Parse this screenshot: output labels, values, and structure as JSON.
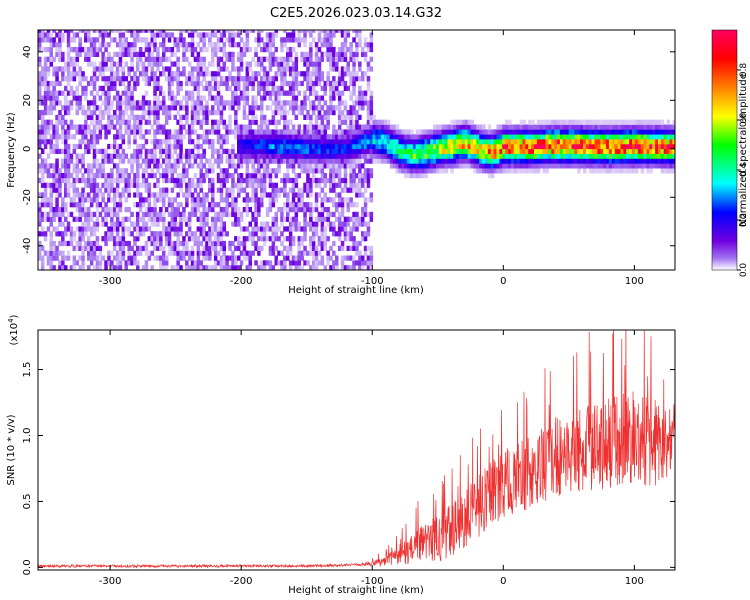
{
  "title": "C2E5.2026.023.03.14.G32",
  "chart_data": [
    {
      "type": "heatmap",
      "title": "C2E5.2026.023.03.14.G32",
      "xlabel": "Height of straight line (km)",
      "ylabel": "Frequency (Hz)",
      "xlim": [
        -355,
        131
      ],
      "ylim": [
        -50,
        49
      ],
      "x_ticks": [
        -300,
        -200,
        -100,
        0,
        100
      ],
      "x_tick_labels": [
        "-300",
        "-200",
        "-100",
        "0",
        "100"
      ],
      "y_ticks": [
        -40,
        -20,
        0,
        20,
        40
      ],
      "y_tick_labels": [
        "-40",
        "-20",
        "0",
        "20",
        "40"
      ],
      "colorbar": {
        "label": "Normalized spectral amplitude",
        "range": [
          0,
          0.96
        ],
        "ticks": [
          0.0,
          0.2,
          0.4,
          0.6,
          0.8
        ],
        "tick_labels": [
          "0.0",
          "0.2",
          "0.4",
          "0.6",
          "0.8"
        ],
        "colors": [
          "#ffffff",
          "#a070f0",
          "#7000e0",
          "#0000ff",
          "#00ffff",
          "#00ff00",
          "#ffff00",
          "#ff8000",
          "#ff0000",
          "#ff0060"
        ]
      },
      "noise_region_x": [
        -355,
        -100
      ],
      "signal_track": {
        "x": [
          -200,
          -180,
          -160,
          -140,
          -120,
          -100,
          -90,
          -80,
          -70,
          -60,
          -50,
          -40,
          -30,
          -20,
          -10,
          0,
          20,
          40,
          60,
          80,
          100,
          131
        ],
        "freq": [
          1.5,
          1.2,
          0.8,
          -0.4,
          0.4,
          4.0,
          2.5,
          -0.8,
          -2.5,
          -1.5,
          0.2,
          1.0,
          2.5,
          0.0,
          -1.5,
          0.8,
          0.8,
          1.5,
          1.2,
          0.8,
          1.2,
          0.8
        ],
        "peak_amplitude": [
          0.2,
          0.3,
          0.3,
          0.25,
          0.25,
          0.35,
          0.4,
          0.45,
          0.5,
          0.55,
          0.6,
          0.65,
          0.7,
          0.7,
          0.75,
          0.8,
          0.85,
          0.85,
          0.85,
          0.85,
          0.88,
          0.85
        ]
      }
    },
    {
      "type": "line",
      "xlabel": "Height of straight line (km)",
      "ylabel": "SNR (10 * v/v)",
      "y_multiplier": "(x10",
      "y_multiplier_exp": "4",
      "y_multiplier_close": ")",
      "xlim": [
        -355,
        131
      ],
      "ylim": [
        -0.02,
        1.8
      ],
      "x_ticks": [
        -300,
        -200,
        -100,
        0,
        100
      ],
      "x_tick_labels": [
        "-300",
        "-200",
        "-100",
        "0",
        "100"
      ],
      "y_ticks": [
        0.0,
        0.5,
        1.0,
        1.5
      ],
      "y_tick_labels": [
        "0.0",
        "0.5",
        "1.0",
        "1.5"
      ],
      "color": "#ef3030",
      "series": [
        {
          "name": "SNR",
          "x": [
            -355,
            -300,
            -250,
            -200,
            -150,
            -110,
            -100,
            -90,
            -80,
            -70,
            -60,
            -50,
            -40,
            -30,
            -20,
            -10,
            0,
            10,
            20,
            30,
            40,
            50,
            60,
            70,
            80,
            90,
            100,
            110,
            120,
            131
          ],
          "mean": [
            0.01,
            0.01,
            0.01,
            0.01,
            0.01,
            0.02,
            0.03,
            0.05,
            0.1,
            0.14,
            0.18,
            0.22,
            0.28,
            0.35,
            0.45,
            0.55,
            0.62,
            0.68,
            0.72,
            0.78,
            0.84,
            0.86,
            0.9,
            0.92,
            0.95,
            0.98,
            1.0,
            0.98,
            0.95,
            0.92
          ],
          "spread": [
            0.01,
            0.01,
            0.01,
            0.01,
            0.01,
            0.01,
            0.02,
            0.04,
            0.08,
            0.12,
            0.15,
            0.18,
            0.2,
            0.22,
            0.24,
            0.25,
            0.26,
            0.27,
            0.28,
            0.29,
            0.3,
            0.32,
            0.33,
            0.35,
            0.35,
            0.36,
            0.38,
            0.36,
            0.34,
            0.32
          ],
          "peak_max": 1.8
        }
      ]
    }
  ]
}
